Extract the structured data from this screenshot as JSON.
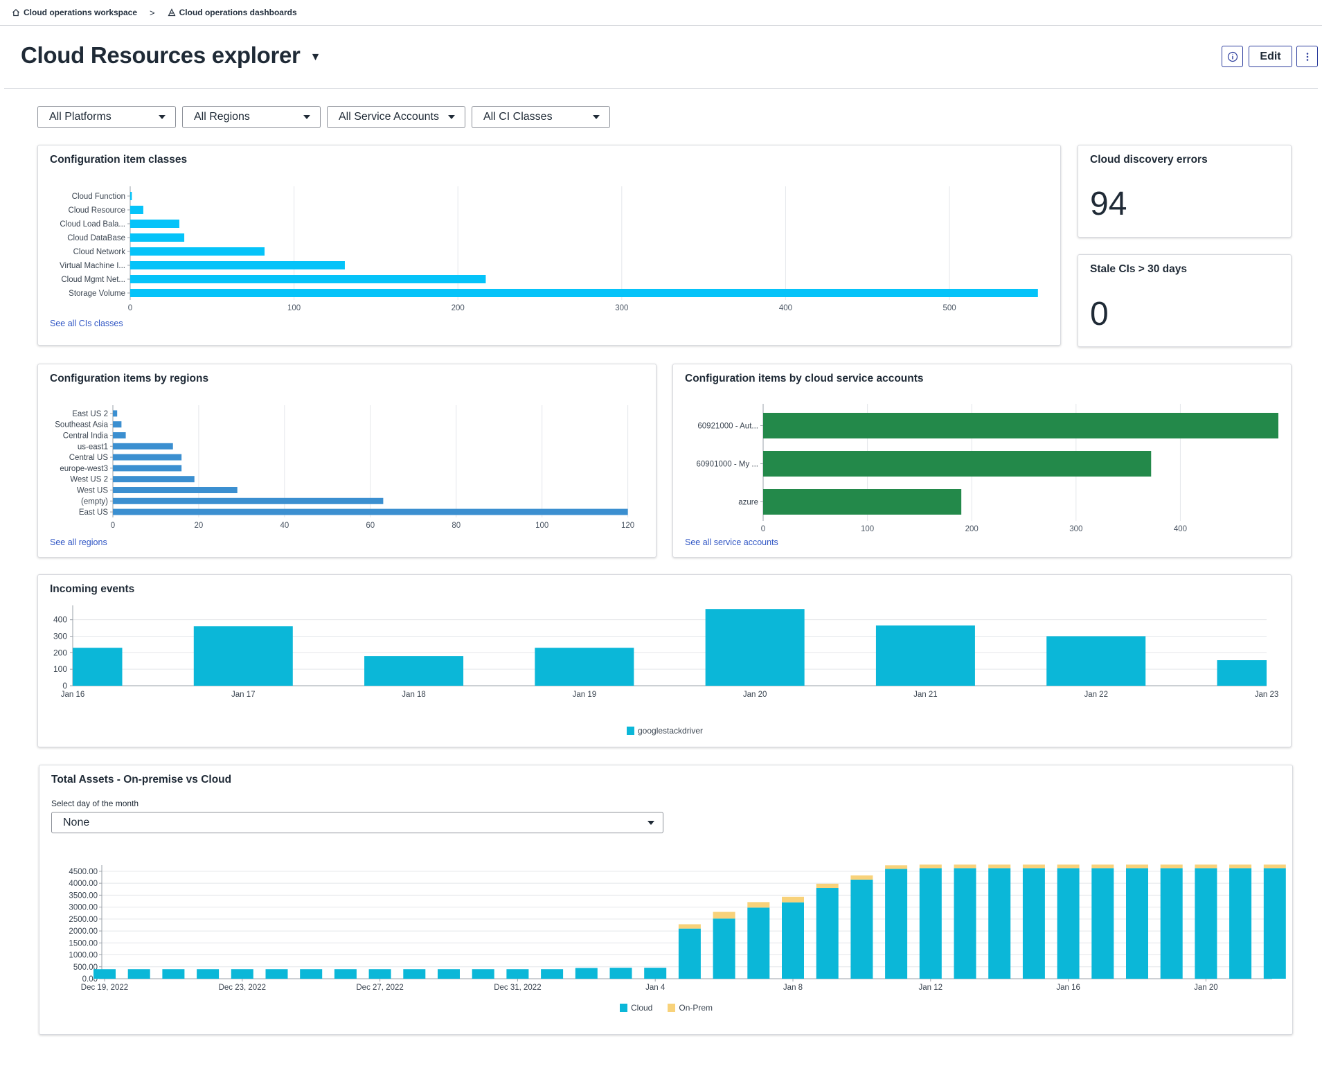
{
  "breadcrumb": {
    "items": [
      {
        "label": "Cloud operations workspace",
        "icon": "home-icon"
      },
      {
        "label": "Cloud operations dashboards",
        "icon": "dashboard-icon"
      }
    ],
    "separator": ">"
  },
  "header": {
    "title": "Cloud Resources explorer",
    "info_icon": "info-icon",
    "edit_label": "Edit",
    "more_icon": "more-vertical-icon"
  },
  "filters": [
    {
      "label": "All Platforms"
    },
    {
      "label": "All Regions"
    },
    {
      "label": "All Service Accounts"
    },
    {
      "label": "All CI Classes"
    }
  ],
  "colors": {
    "ci_classes": "#05c3f9",
    "regions": "#3b8fd0",
    "accounts": "#23894a",
    "events": "#0bb7d8",
    "cloud": "#0bb7d8",
    "onprem": "#f8d27a"
  },
  "cards": {
    "ci_classes": {
      "title": "Configuration item classes",
      "link": "See all CIs classes"
    },
    "discovery_errors": {
      "title": "Cloud discovery errors",
      "value": "94"
    },
    "stale_cis": {
      "title": "Stale CIs > 30 days",
      "value": "0"
    },
    "regions": {
      "title": "Configuration items by regions",
      "link": "See all regions"
    },
    "accounts": {
      "title": "Configuration items by cloud service accounts",
      "link": "See all service accounts"
    },
    "events": {
      "title": "Incoming events"
    },
    "assets": {
      "title": "Total Assets - On-premise vs Cloud",
      "select_label": "Select day of the month",
      "select_value": "None"
    }
  },
  "chart_data": [
    {
      "id": "ci_classes",
      "type": "bar",
      "orientation": "horizontal",
      "categories": [
        "Cloud Function",
        "Cloud Resource",
        "Cloud Load Bala...",
        "Cloud DataBase",
        "Cloud Network",
        "Virtual Machine I...",
        "Cloud Mgmt Net...",
        "Storage Volume"
      ],
      "values": [
        1,
        8,
        30,
        33,
        82,
        131,
        217,
        554
      ],
      "xlim": [
        0,
        560
      ],
      "xticks": [
        0,
        100,
        200,
        300,
        400,
        500
      ],
      "grid": true
    },
    {
      "id": "regions",
      "type": "bar",
      "orientation": "horizontal",
      "categories": [
        "East US 2",
        "Southeast Asia",
        "Central India",
        "us-east1",
        "Central US",
        "europe-west3",
        "West US 2",
        "West US",
        "(empty)",
        "East US"
      ],
      "values": [
        1,
        2,
        3,
        14,
        16,
        16,
        19,
        29,
        63,
        120
      ],
      "xlim": [
        0,
        122
      ],
      "xticks": [
        0,
        20,
        40,
        60,
        80,
        100,
        120
      ],
      "grid": true
    },
    {
      "id": "accounts",
      "type": "bar",
      "orientation": "horizontal",
      "categories": [
        "60921000 - Aut...",
        "60901000 - My ...",
        "azure"
      ],
      "values": [
        494,
        372,
        190
      ],
      "xlim": [
        0,
        494
      ],
      "xticks": [
        0,
        100,
        200,
        300,
        400
      ],
      "grid": true
    },
    {
      "id": "events",
      "type": "bar",
      "categories": [
        "Jan 16",
        "Jan 17",
        "Jan 18",
        "Jan 19",
        "Jan 20",
        "Jan 21",
        "Jan 22",
        "Jan 23"
      ],
      "series": [
        {
          "name": "googlestackdriver",
          "values": [
            230,
            360,
            180,
            230,
            465,
            365,
            300,
            155
          ]
        }
      ],
      "ylim": [
        0,
        470
      ],
      "yticks": [
        0,
        100,
        200,
        300,
        400
      ],
      "legend": "bottom",
      "grid": true
    },
    {
      "id": "assets",
      "type": "bar",
      "stacked": true,
      "x": [
        "Dec 19, 2022",
        "Dec 20, 2022",
        "Dec 21, 2022",
        "Dec 22, 2022",
        "Dec 23, 2022",
        "Dec 24, 2022",
        "Dec 25, 2022",
        "Dec 26, 2022",
        "Dec 27, 2022",
        "Dec 28, 2022",
        "Dec 29, 2022",
        "Dec 30, 2022",
        "Dec 31, 2022",
        "Jan 1",
        "Jan 2",
        "Jan 3",
        "Jan 4",
        "Jan 5",
        "Jan 6",
        "Jan 7",
        "Jan 8",
        "Jan 9",
        "Jan 10",
        "Jan 11",
        "Jan 12",
        "Jan 13",
        "Jan 14",
        "Jan 15",
        "Jan 16",
        "Jan 17",
        "Jan 18",
        "Jan 19",
        "Jan 20",
        "Jan 21",
        "Jan 22"
      ],
      "xtick_labels": [
        {
          "index": 0,
          "label": "Dec 19, 2022"
        },
        {
          "index": 4,
          "label": "Dec 23, 2022"
        },
        {
          "index": 8,
          "label": "Dec 27, 2022"
        },
        {
          "index": 12,
          "label": "Dec 31, 2022"
        },
        {
          "index": 16,
          "label": "Jan 4"
        },
        {
          "index": 20,
          "label": "Jan 8"
        },
        {
          "index": 24,
          "label": "Jan 12"
        },
        {
          "index": 28,
          "label": "Jan 16"
        },
        {
          "index": 32,
          "label": "Jan 20"
        }
      ],
      "series": [
        {
          "name": "Cloud",
          "values": [
            400,
            400,
            400,
            400,
            400,
            400,
            400,
            400,
            400,
            400,
            400,
            400,
            400,
            400,
            450,
            460,
            460,
            2100,
            2520,
            2980,
            3200,
            3800,
            4150,
            4600,
            4630,
            4630,
            4630,
            4630,
            4630,
            4630,
            4630,
            4630,
            4630,
            4630,
            4630
          ]
        },
        {
          "name": "On-Prem",
          "values": [
            0,
            0,
            0,
            0,
            0,
            0,
            0,
            0,
            0,
            0,
            0,
            0,
            0,
            0,
            0,
            0,
            0,
            180,
            280,
            230,
            230,
            180,
            180,
            150,
            150,
            150,
            150,
            150,
            150,
            150,
            150,
            150,
            150,
            150,
            150
          ]
        }
      ],
      "ylim": [
        0,
        4700
      ],
      "yticks": [
        "0.00",
        "500.00",
        "1000.00",
        "1500.00",
        "2000.00",
        "2500.00",
        "3000.00",
        "3500.00",
        "4000.00",
        "4500.00"
      ],
      "legend": "bottom",
      "grid": true
    }
  ]
}
